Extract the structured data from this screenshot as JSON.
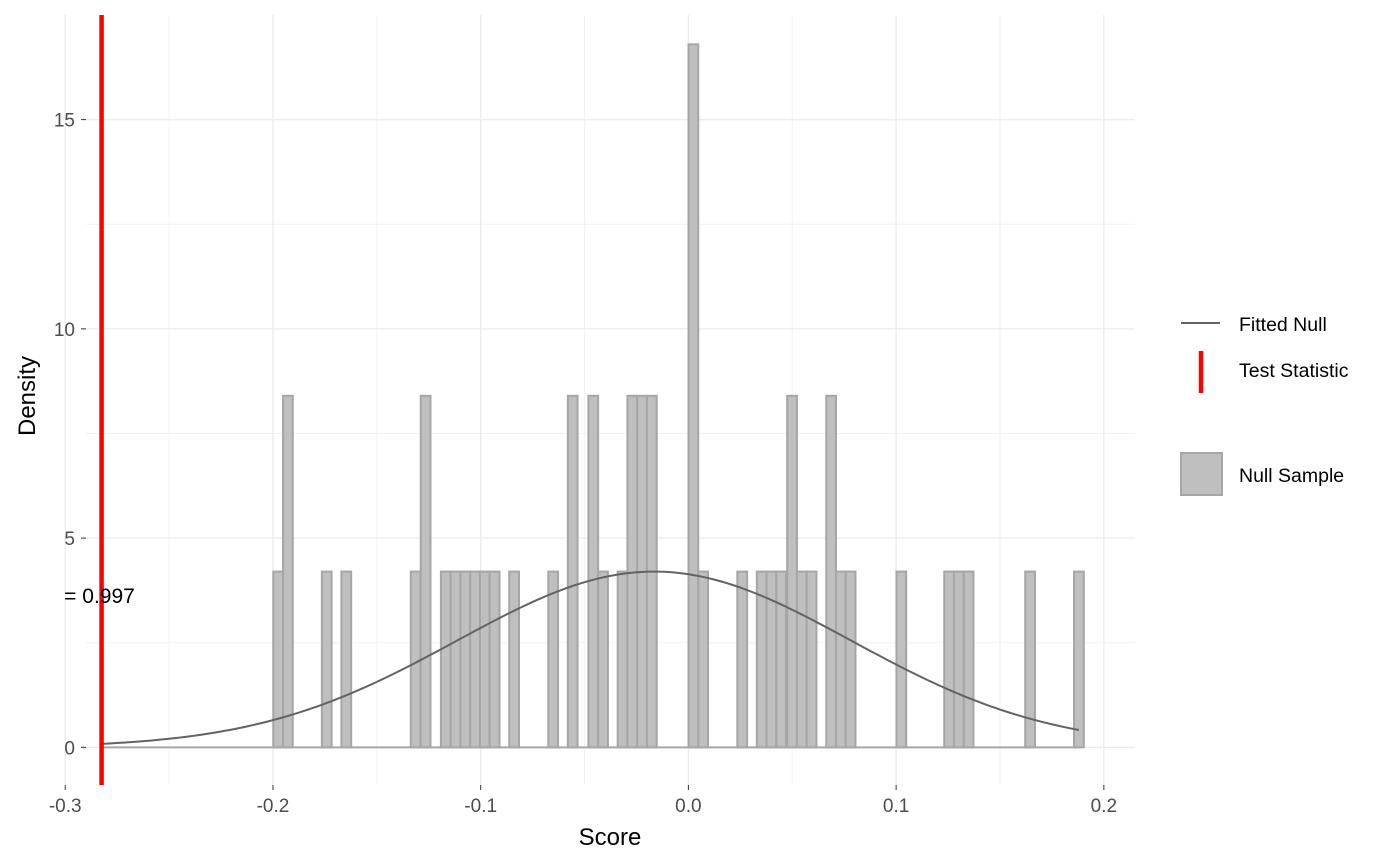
{
  "chart_data": {
    "type": "bar",
    "xlabel": "Score",
    "ylabel": "Density",
    "xlim": [
      -0.29,
      0.215
    ],
    "ylim": [
      -0.9,
      17.5
    ],
    "x_ticks": [
      -0.3,
      -0.2,
      -0.1,
      0.0,
      0.1,
      0.2
    ],
    "x_tick_labels": [
      "-0.3",
      "-0.2",
      "-0.1",
      "0.0",
      "0.1",
      "0.2"
    ],
    "y_ticks": [
      0,
      5,
      10,
      15
    ],
    "y_tick_labels": [
      "0",
      "5",
      "10",
      "15"
    ],
    "grid": true,
    "bin_width": 0.0047,
    "histogram": {
      "name": "Null Sample",
      "color": "#bfbfbf",
      "edge_color": "#a6a6a6",
      "bins": [
        {
          "x": -0.1975,
          "y": 4.2
        },
        {
          "x": -0.1928,
          "y": 8.4
        },
        {
          "x": -0.1741,
          "y": 4.2
        },
        {
          "x": -0.1647,
          "y": 4.2
        },
        {
          "x": -0.1313,
          "y": 4.2
        },
        {
          "x": -0.1265,
          "y": 8.4
        },
        {
          "x": -0.1168,
          "y": 4.2
        },
        {
          "x": -0.1121,
          "y": 4.2
        },
        {
          "x": -0.1074,
          "y": 4.2
        },
        {
          "x": -0.1027,
          "y": 4.2
        },
        {
          "x": -0.098,
          "y": 4.2
        },
        {
          "x": -0.0933,
          "y": 4.2
        },
        {
          "x": -0.0839,
          "y": 4.2
        },
        {
          "x": -0.0651,
          "y": 4.2
        },
        {
          "x": -0.0557,
          "y": 8.4
        },
        {
          "x": -0.0458,
          "y": 8.4
        },
        {
          "x": -0.0411,
          "y": 4.2
        },
        {
          "x": -0.0317,
          "y": 4.2
        },
        {
          "x": -0.027,
          "y": 8.4
        },
        {
          "x": -0.0223,
          "y": 8.4
        },
        {
          "x": -0.0176,
          "y": 8.4
        },
        {
          "x": 0.0024,
          "y": 16.8
        },
        {
          "x": 0.0071,
          "y": 4.2
        },
        {
          "x": 0.0259,
          "y": 4.2
        },
        {
          "x": 0.0353,
          "y": 4.2
        },
        {
          "x": 0.04,
          "y": 4.2
        },
        {
          "x": 0.0447,
          "y": 4.2
        },
        {
          "x": 0.0499,
          "y": 8.4
        },
        {
          "x": 0.0546,
          "y": 4.2
        },
        {
          "x": 0.0593,
          "y": 4.2
        },
        {
          "x": 0.0687,
          "y": 8.4
        },
        {
          "x": 0.0734,
          "y": 4.2
        },
        {
          "x": 0.0781,
          "y": 4.2
        },
        {
          "x": 0.1025,
          "y": 4.2
        },
        {
          "x": 0.1255,
          "y": 4.2
        },
        {
          "x": 0.1302,
          "y": 4.2
        },
        {
          "x": 0.1349,
          "y": 4.2
        },
        {
          "x": 0.1645,
          "y": 4.2
        },
        {
          "x": 0.188,
          "y": 4.2
        }
      ]
    },
    "fitted_null": {
      "name": "Fitted Null",
      "color": "#636363",
      "distribution": "normal",
      "mean": -0.0165,
      "sd": 0.095,
      "x_range": [
        -0.2825,
        0.188
      ]
    },
    "test_statistic": {
      "name": "Test Statistic",
      "color": "#ff0000",
      "x": -0.2825
    },
    "annotations": [
      {
        "text": "= 0.997",
        "x": -0.2835,
        "y": 3.45
      }
    ],
    "legend": {
      "position": "right",
      "entries": [
        {
          "label": "Fitted Null",
          "key": "line",
          "color": "#636363"
        },
        {
          "label": "Test Statistic",
          "key": "vline",
          "color": "#ff0000"
        },
        {
          "label": "Null Sample",
          "key": "fill",
          "color": "#bfbfbf"
        }
      ]
    }
  }
}
